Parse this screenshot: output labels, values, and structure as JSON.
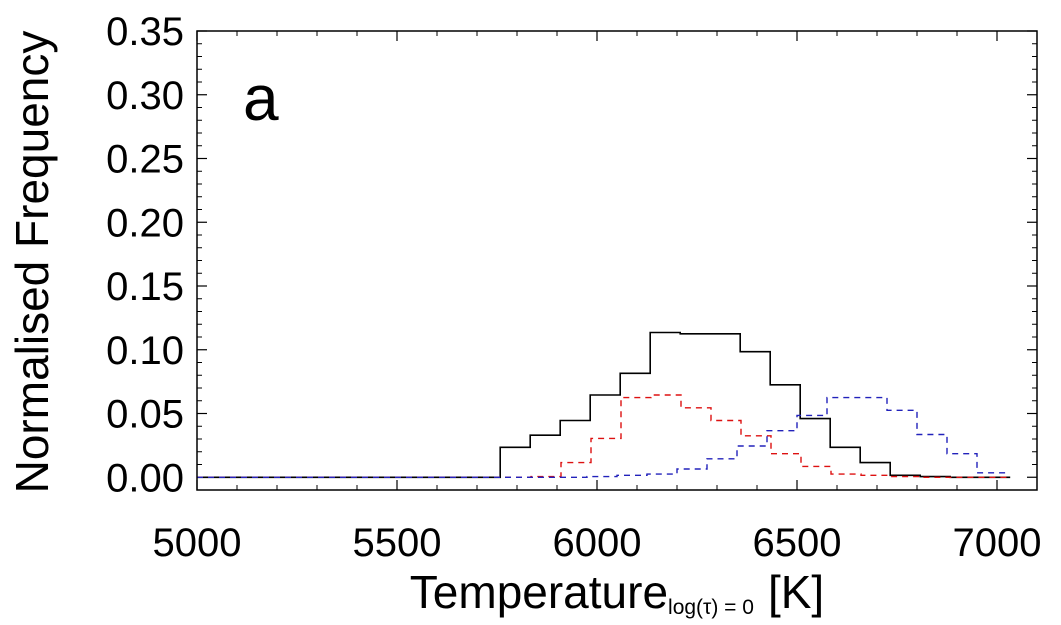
{
  "chart_data": {
    "type": "histogram",
    "panel_label": "a",
    "xlabel": {
      "main": "Temperature",
      "sub": "log(τ) = 0",
      "unit": "[K]"
    },
    "ylabel": "Normalised Frequency",
    "xlim": [
      5000,
      7100
    ],
    "ylim": [
      -0.01,
      0.35
    ],
    "x_ticks": [
      5000,
      5500,
      6000,
      6500,
      7000
    ],
    "x_tick_labels": [
      "5000",
      "5500",
      "6000",
      "6500",
      "7000"
    ],
    "x_minor_step": 100,
    "y_ticks": [
      0.0,
      0.05,
      0.1,
      0.15,
      0.2,
      0.25,
      0.3,
      0.35
    ],
    "y_tick_labels": [
      "0.00",
      "0.05",
      "0.10",
      "0.15",
      "0.20",
      "0.25",
      "0.30",
      "0.35"
    ],
    "y_minor_step": 0.01,
    "bin_width": 75,
    "series": [
      {
        "style": "solid",
        "color": "#000000",
        "bins": [
          [
            5000,
            0.0
          ],
          [
            5075,
            0.0
          ],
          [
            5150,
            0.0
          ],
          [
            5225,
            0.0
          ],
          [
            5300,
            0.0
          ],
          [
            5375,
            0.0
          ],
          [
            5450,
            0.0
          ],
          [
            5525,
            0.0
          ],
          [
            5600,
            0.0
          ],
          [
            5675,
            0.0
          ],
          [
            5758,
            0.0235
          ],
          [
            5833,
            0.033
          ],
          [
            5908,
            0.0445
          ],
          [
            5983,
            0.0645
          ],
          [
            6058,
            0.0815
          ],
          [
            6133,
            0.1135
          ],
          [
            6208,
            0.1125
          ],
          [
            6283,
            0.1125
          ],
          [
            6358,
            0.0985
          ],
          [
            6433,
            0.0725
          ],
          [
            6508,
            0.046
          ],
          [
            6583,
            0.0235
          ],
          [
            6658,
            0.0115
          ],
          [
            6733,
            0.0015
          ],
          [
            6808,
            0.0005
          ],
          [
            6883,
            0.0
          ],
          [
            6958,
            0.0
          ]
        ]
      },
      {
        "style": "dashed",
        "color": "#dd1111",
        "bins": [
          [
            5000,
            0.0
          ],
          [
            5075,
            0.0
          ],
          [
            5150,
            0.0
          ],
          [
            5225,
            0.0
          ],
          [
            5300,
            0.0
          ],
          [
            5375,
            0.0
          ],
          [
            5450,
            0.0
          ],
          [
            5525,
            0.0
          ],
          [
            5600,
            0.0
          ],
          [
            5675,
            0.0
          ],
          [
            5760,
            0.0
          ],
          [
            5835,
            0.0005
          ],
          [
            5910,
            0.0115
          ],
          [
            5985,
            0.0305
          ],
          [
            6060,
            0.0625
          ],
          [
            6135,
            0.0645
          ],
          [
            6210,
            0.0545
          ],
          [
            6285,
            0.0445
          ],
          [
            6360,
            0.0325
          ],
          [
            6435,
            0.0185
          ],
          [
            6510,
            0.0085
          ],
          [
            6585,
            0.0025
          ],
          [
            6660,
            0.0015
          ],
          [
            6735,
            0.0005
          ],
          [
            6810,
            0.0
          ],
          [
            6885,
            0.0
          ],
          [
            6960,
            0.0
          ]
        ]
      },
      {
        "style": "dashed",
        "color": "#2222bb",
        "bins": [
          [
            5000,
            0.0
          ],
          [
            5075,
            0.0
          ],
          [
            5150,
            0.0
          ],
          [
            5225,
            0.0
          ],
          [
            5300,
            0.0
          ],
          [
            5375,
            0.0
          ],
          [
            5450,
            0.0
          ],
          [
            5525,
            0.0
          ],
          [
            5600,
            0.0
          ],
          [
            5675,
            0.0
          ],
          [
            5750,
            0.0
          ],
          [
            5825,
            0.0
          ],
          [
            5900,
            0.0
          ],
          [
            5975,
            0.0005
          ],
          [
            6050,
            0.0015
          ],
          [
            6125,
            0.0025
          ],
          [
            6200,
            0.0065
          ],
          [
            6275,
            0.0145
          ],
          [
            6350,
            0.0245
          ],
          [
            6425,
            0.0365
          ],
          [
            6500,
            0.0485
          ],
          [
            6575,
            0.0625
          ],
          [
            6650,
            0.0625
          ],
          [
            6725,
            0.0525
          ],
          [
            6800,
            0.0335
          ],
          [
            6875,
            0.0185
          ],
          [
            6950,
            0.0035
          ]
        ]
      }
    ]
  }
}
